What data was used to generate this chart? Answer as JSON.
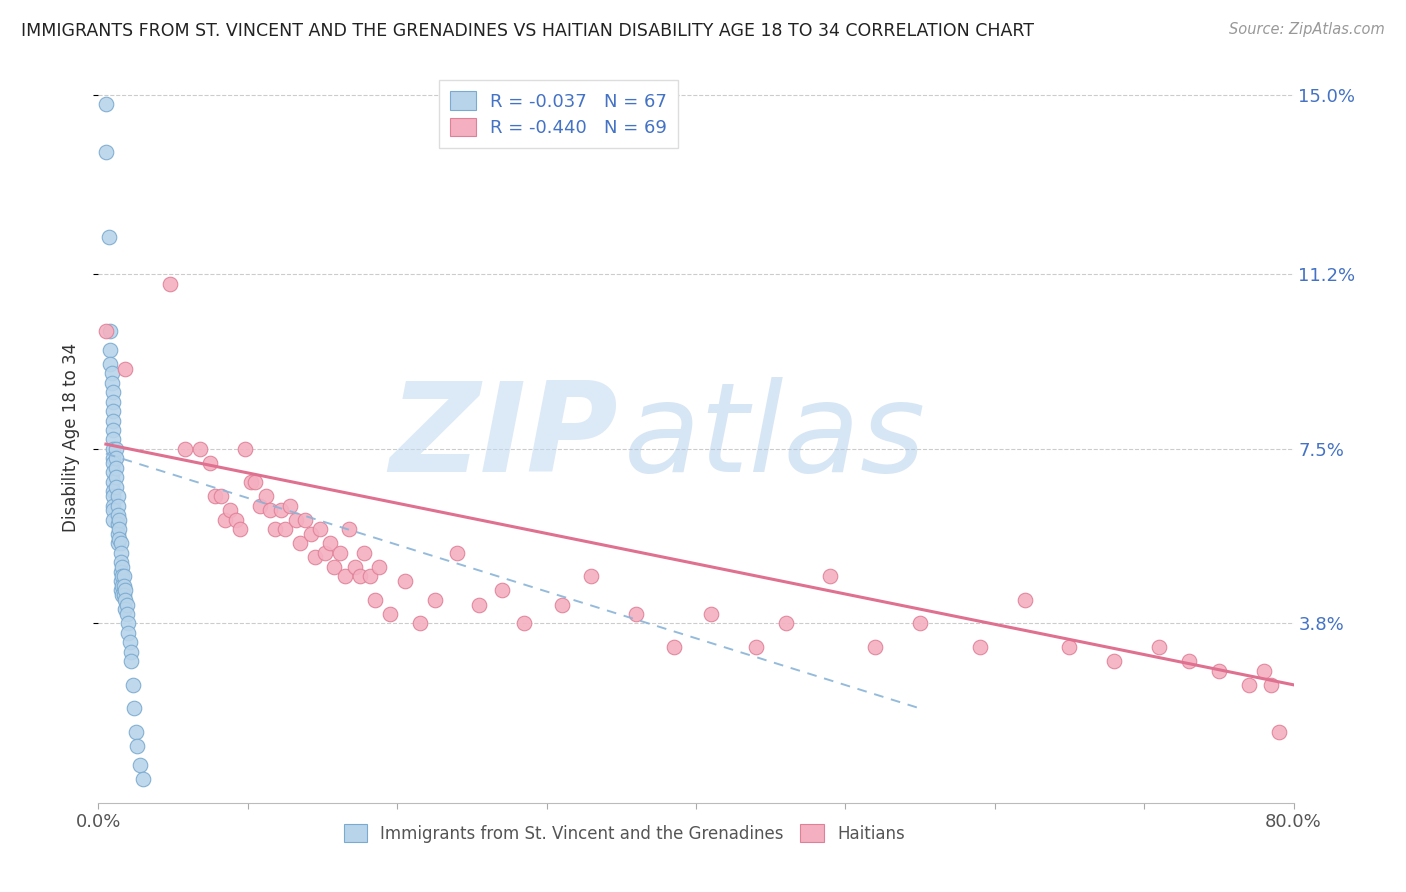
{
  "title": "IMMIGRANTS FROM ST. VINCENT AND THE GRENADINES VS HAITIAN DISABILITY AGE 18 TO 34 CORRELATION CHART",
  "source": "Source: ZipAtlas.com",
  "ylabel": "Disability Age 18 to 34",
  "xlim": [
    0.0,
    0.8
  ],
  "ylim": [
    0.0,
    0.155
  ],
  "yticks": [
    0.038,
    0.075,
    0.112,
    0.15
  ],
  "ytick_labels": [
    "3.8%",
    "7.5%",
    "11.2%",
    "15.0%"
  ],
  "xticks": [
    0.0,
    0.1,
    0.2,
    0.3,
    0.4,
    0.5,
    0.6,
    0.7,
    0.8
  ],
  "blue_R": -0.037,
  "blue_N": 67,
  "pink_R": -0.44,
  "pink_N": 69,
  "blue_fill": "#b8d4ea",
  "blue_edge": "#7aaad0",
  "pink_fill": "#f4b0c0",
  "pink_edge": "#e08098",
  "blue_line": "#8ab4d8",
  "pink_line": "#e07090",
  "legend_label_blue": "Immigrants from St. Vincent and the Grenadines",
  "legend_label_pink": "Haitians",
  "accent_color": "#4472c4",
  "blue_scatter_x": [
    0.005,
    0.005,
    0.007,
    0.008,
    0.008,
    0.008,
    0.009,
    0.009,
    0.01,
    0.01,
    0.01,
    0.01,
    0.01,
    0.01,
    0.01,
    0.01,
    0.01,
    0.01,
    0.01,
    0.01,
    0.01,
    0.01,
    0.01,
    0.01,
    0.012,
    0.012,
    0.012,
    0.012,
    0.012,
    0.013,
    0.013,
    0.013,
    0.013,
    0.013,
    0.013,
    0.014,
    0.014,
    0.014,
    0.015,
    0.015,
    0.015,
    0.015,
    0.015,
    0.015,
    0.016,
    0.016,
    0.016,
    0.016,
    0.017,
    0.017,
    0.017,
    0.018,
    0.018,
    0.018,
    0.019,
    0.019,
    0.02,
    0.02,
    0.021,
    0.022,
    0.022,
    0.023,
    0.024,
    0.025,
    0.026,
    0.028,
    0.03
  ],
  "blue_scatter_y": [
    0.148,
    0.138,
    0.12,
    0.1,
    0.096,
    0.093,
    0.091,
    0.089,
    0.087,
    0.085,
    0.083,
    0.081,
    0.079,
    0.077,
    0.075,
    0.073,
    0.072,
    0.07,
    0.068,
    0.066,
    0.065,
    0.063,
    0.062,
    0.06,
    0.075,
    0.073,
    0.071,
    0.069,
    0.067,
    0.065,
    0.063,
    0.061,
    0.059,
    0.057,
    0.055,
    0.06,
    0.058,
    0.056,
    0.055,
    0.053,
    0.051,
    0.049,
    0.047,
    0.045,
    0.05,
    0.048,
    0.046,
    0.044,
    0.048,
    0.046,
    0.044,
    0.045,
    0.043,
    0.041,
    0.042,
    0.04,
    0.038,
    0.036,
    0.034,
    0.032,
    0.03,
    0.025,
    0.02,
    0.015,
    0.012,
    0.008,
    0.005
  ],
  "pink_scatter_x": [
    0.005,
    0.018,
    0.048,
    0.058,
    0.068,
    0.075,
    0.078,
    0.082,
    0.085,
    0.088,
    0.092,
    0.095,
    0.098,
    0.102,
    0.105,
    0.108,
    0.112,
    0.115,
    0.118,
    0.122,
    0.125,
    0.128,
    0.132,
    0.135,
    0.138,
    0.142,
    0.145,
    0.148,
    0.152,
    0.155,
    0.158,
    0.162,
    0.165,
    0.168,
    0.172,
    0.175,
    0.178,
    0.182,
    0.185,
    0.188,
    0.195,
    0.205,
    0.215,
    0.225,
    0.24,
    0.255,
    0.27,
    0.285,
    0.31,
    0.33,
    0.36,
    0.385,
    0.41,
    0.44,
    0.46,
    0.49,
    0.52,
    0.55,
    0.59,
    0.62,
    0.65,
    0.68,
    0.71,
    0.73,
    0.75,
    0.77,
    0.78,
    0.785,
    0.79
  ],
  "pink_scatter_y": [
    0.1,
    0.092,
    0.11,
    0.075,
    0.075,
    0.072,
    0.065,
    0.065,
    0.06,
    0.062,
    0.06,
    0.058,
    0.075,
    0.068,
    0.068,
    0.063,
    0.065,
    0.062,
    0.058,
    0.062,
    0.058,
    0.063,
    0.06,
    0.055,
    0.06,
    0.057,
    0.052,
    0.058,
    0.053,
    0.055,
    0.05,
    0.053,
    0.048,
    0.058,
    0.05,
    0.048,
    0.053,
    0.048,
    0.043,
    0.05,
    0.04,
    0.047,
    0.038,
    0.043,
    0.053,
    0.042,
    0.045,
    0.038,
    0.042,
    0.048,
    0.04,
    0.033,
    0.04,
    0.033,
    0.038,
    0.048,
    0.033,
    0.038,
    0.033,
    0.043,
    0.033,
    0.03,
    0.033,
    0.03,
    0.028,
    0.025,
    0.028,
    0.025,
    0.015
  ]
}
